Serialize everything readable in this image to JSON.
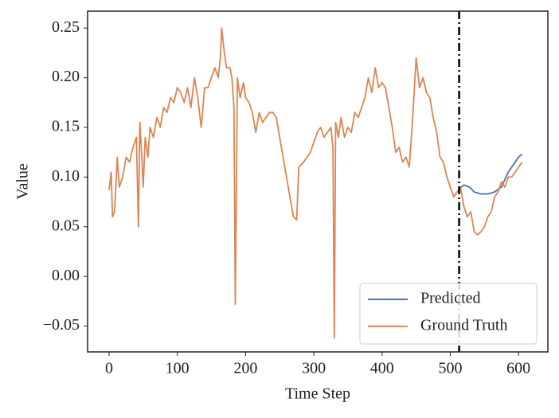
{
  "chart_data": {
    "type": "line",
    "xlabel": "Time Step",
    "ylabel": "Value",
    "xlim": [
      -31.5,
      643
    ],
    "ylim": [
      -0.076,
      0.267
    ],
    "xticks": [
      0,
      100,
      200,
      300,
      400,
      500,
      600
    ],
    "yticks": [
      {
        "value": -0.05,
        "label": "−0.05"
      },
      {
        "value": 0,
        "label": "0.00"
      },
      {
        "value": 0.05,
        "label": "0.05"
      },
      {
        "value": 0.1,
        "label": "0.10"
      },
      {
        "value": 0.15,
        "label": "0.15"
      },
      {
        "value": 0.2,
        "label": "0.20"
      },
      {
        "value": 0.25,
        "label": "0.25"
      }
    ],
    "vline": 513,
    "legend": "lower right",
    "series": [
      {
        "name": "Predicted",
        "color": "#4c72b0",
        "x": [
          512,
          520,
          528,
          535,
          545,
          555,
          565,
          575,
          585,
          595,
          600,
          605
        ],
        "values": [
          0.088,
          0.092,
          0.09,
          0.085,
          0.083,
          0.083,
          0.085,
          0.09,
          0.105,
          0.115,
          0.12,
          0.123
        ]
      },
      {
        "name": "Ground Truth",
        "color": "#dd8452",
        "x": [
          0,
          3,
          5,
          8,
          12,
          15,
          20,
          25,
          30,
          35,
          40,
          43,
          45,
          48,
          50,
          53,
          57,
          60,
          65,
          70,
          75,
          80,
          85,
          90,
          95,
          100,
          105,
          110,
          115,
          120,
          125,
          130,
          135,
          140,
          145,
          150,
          155,
          160,
          163,
          165,
          168,
          172,
          177,
          180,
          183,
          185,
          188,
          192,
          197,
          200,
          205,
          210,
          215,
          220,
          225,
          230,
          235,
          240,
          245,
          250,
          255,
          260,
          265,
          270,
          275,
          278,
          285,
          295,
          305,
          310,
          315,
          320,
          325,
          328,
          330,
          332,
          336,
          340,
          345,
          350,
          355,
          360,
          365,
          370,
          375,
          380,
          385,
          390,
          395,
          400,
          405,
          410,
          415,
          420,
          425,
          430,
          435,
          440,
          445,
          450,
          455,
          460,
          465,
          470,
          475,
          480,
          485,
          490,
          495,
          500,
          505,
          510,
          515,
          520,
          525,
          530,
          535,
          540,
          545,
          550,
          555,
          560,
          565,
          570,
          575,
          580,
          585,
          590,
          595,
          600,
          605
        ],
        "values": [
          0.087,
          0.105,
          0.06,
          0.065,
          0.12,
          0.09,
          0.1,
          0.12,
          0.115,
          0.13,
          0.14,
          0.05,
          0.155,
          0.12,
          0.09,
          0.14,
          0.12,
          0.15,
          0.14,
          0.16,
          0.15,
          0.17,
          0.165,
          0.18,
          0.175,
          0.19,
          0.185,
          0.175,
          0.19,
          0.17,
          0.2,
          0.18,
          0.15,
          0.19,
          0.19,
          0.2,
          0.21,
          0.2,
          0.22,
          0.25,
          0.23,
          0.21,
          0.21,
          0.2,
          0.17,
          -0.028,
          0.2,
          0.18,
          0.195,
          0.18,
          0.175,
          0.165,
          0.145,
          0.165,
          0.155,
          0.16,
          0.165,
          0.165,
          0.16,
          0.14,
          0.12,
          0.1,
          0.08,
          0.06,
          0.057,
          0.11,
          0.115,
          0.125,
          0.145,
          0.15,
          0.14,
          0.145,
          0.15,
          0.13,
          -0.062,
          0.155,
          0.14,
          0.16,
          0.14,
          0.15,
          0.145,
          0.165,
          0.16,
          0.17,
          0.18,
          0.2,
          0.185,
          0.21,
          0.19,
          0.195,
          0.19,
          0.17,
          0.15,
          0.125,
          0.13,
          0.115,
          0.12,
          0.11,
          0.16,
          0.22,
          0.19,
          0.2,
          0.185,
          0.18,
          0.16,
          0.145,
          0.12,
          0.115,
          0.1,
          0.09,
          0.08,
          0.085,
          0.09,
          0.07,
          0.06,
          0.065,
          0.045,
          0.042,
          0.045,
          0.05,
          0.06,
          0.065,
          0.08,
          0.085,
          0.095,
          0.09,
          0.1,
          0.1,
          0.105,
          0.11,
          0.115
        ]
      }
    ]
  }
}
